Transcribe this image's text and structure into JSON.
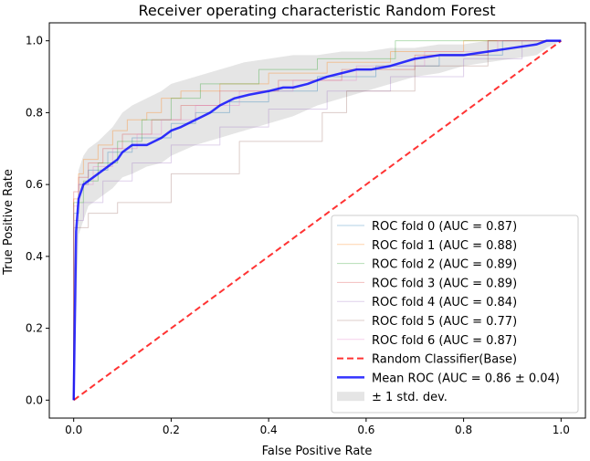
{
  "chart_data": {
    "type": "line",
    "title": "Receiver operating characteristic Random Forest",
    "xlabel": "False Positive Rate",
    "ylabel": "True Positive Rate",
    "xlim": [
      -0.05,
      1.05
    ],
    "ylim": [
      -0.05,
      1.05
    ],
    "xticks": [
      "0.0",
      "0.2",
      "0.4",
      "0.6",
      "0.8",
      "1.0"
    ],
    "yticks": [
      "0.0",
      "0.2",
      "0.4",
      "0.6",
      "0.8",
      "1.0"
    ],
    "legend_position": "lower-right",
    "std_band": {
      "name": "± 1 std. dev.",
      "color": "#bfbfbf",
      "x": [
        0,
        0.01,
        0.02,
        0.03,
        0.05,
        0.08,
        0.1,
        0.12,
        0.15,
        0.18,
        0.2,
        0.25,
        0.3,
        0.35,
        0.4,
        0.45,
        0.5,
        0.55,
        0.6,
        0.65,
        0.7,
        0.75,
        0.8,
        0.85,
        0.9,
        0.95,
        0.97,
        1.0
      ],
      "lower": [
        0,
        0.46,
        0.5,
        0.54,
        0.56,
        0.59,
        0.62,
        0.63,
        0.65,
        0.66,
        0.68,
        0.71,
        0.73,
        0.75,
        0.77,
        0.79,
        0.82,
        0.84,
        0.86,
        0.88,
        0.9,
        0.91,
        0.93,
        0.94,
        0.95,
        0.96,
        0.98,
        1.0
      ],
      "upper": [
        0,
        0.64,
        0.68,
        0.7,
        0.72,
        0.76,
        0.8,
        0.82,
        0.84,
        0.86,
        0.88,
        0.9,
        0.92,
        0.94,
        0.95,
        0.96,
        0.96,
        0.97,
        0.97,
        0.98,
        0.98,
        0.99,
        0.99,
        1.0,
        1.0,
        1.0,
        1.0,
        1.0
      ]
    },
    "series": [
      {
        "name": "ROC fold 0 (AUC = 0.87)",
        "color": "#1f77b4",
        "opacity": 0.35,
        "width": 1,
        "dash": "",
        "x": [
          0,
          0.0,
          0.01,
          0.01,
          0.03,
          0.03,
          0.07,
          0.07,
          0.12,
          0.12,
          0.2,
          0.2,
          0.25,
          0.25,
          0.32,
          0.32,
          0.4,
          0.4,
          0.5,
          0.5,
          0.62,
          0.62,
          0.75,
          0.75,
          0.88,
          0.88,
          1.0
        ],
        "y": [
          0,
          0.52,
          0.52,
          0.6,
          0.6,
          0.64,
          0.64,
          0.69,
          0.69,
          0.73,
          0.73,
          0.77,
          0.77,
          0.8,
          0.8,
          0.83,
          0.83,
          0.86,
          0.86,
          0.9,
          0.9,
          0.93,
          0.93,
          0.96,
          0.96,
          1.0,
          1.0
        ]
      },
      {
        "name": "ROC fold 1 (AUC = 0.88)",
        "color": "#ff7f0e",
        "opacity": 0.35,
        "width": 1,
        "dash": "",
        "x": [
          0,
          0.0,
          0.01,
          0.01,
          0.02,
          0.02,
          0.05,
          0.05,
          0.08,
          0.08,
          0.11,
          0.11,
          0.15,
          0.15,
          0.18,
          0.18,
          0.22,
          0.22,
          0.3,
          0.3,
          0.4,
          0.4,
          0.52,
          0.52,
          0.65,
          0.65,
          0.8,
          0.8,
          1.0
        ],
        "y": [
          0,
          0.56,
          0.56,
          0.63,
          0.63,
          0.67,
          0.67,
          0.71,
          0.71,
          0.75,
          0.75,
          0.78,
          0.78,
          0.8,
          0.8,
          0.84,
          0.84,
          0.86,
          0.86,
          0.88,
          0.88,
          0.91,
          0.91,
          0.94,
          0.94,
          0.97,
          0.97,
          1.0,
          1.0
        ]
      },
      {
        "name": "ROC fold 2 (AUC = 0.89)",
        "color": "#2ca02c",
        "opacity": 0.35,
        "width": 1,
        "dash": "",
        "x": [
          0,
          0.0,
          0.02,
          0.02,
          0.05,
          0.05,
          0.09,
          0.09,
          0.14,
          0.14,
          0.2,
          0.2,
          0.26,
          0.26,
          0.38,
          0.38,
          0.5,
          0.5,
          0.66,
          0.66,
          1.0
        ],
        "y": [
          0,
          0.55,
          0.55,
          0.61,
          0.61,
          0.66,
          0.66,
          0.72,
          0.72,
          0.78,
          0.78,
          0.84,
          0.84,
          0.88,
          0.88,
          0.92,
          0.92,
          0.95,
          0.95,
          1.0,
          1.0
        ]
      },
      {
        "name": "ROC fold 3 (AUC = 0.89)",
        "color": "#d62728",
        "opacity": 0.3,
        "width": 1,
        "dash": "",
        "x": [
          0,
          0.0,
          0.01,
          0.01,
          0.03,
          0.03,
          0.06,
          0.06,
          0.1,
          0.1,
          0.16,
          0.16,
          0.22,
          0.22,
          0.3,
          0.3,
          0.42,
          0.42,
          0.55,
          0.55,
          0.7,
          0.7,
          0.85,
          0.85,
          1.0
        ],
        "y": [
          0,
          0.58,
          0.58,
          0.62,
          0.62,
          0.66,
          0.66,
          0.7,
          0.7,
          0.74,
          0.74,
          0.78,
          0.78,
          0.82,
          0.82,
          0.86,
          0.86,
          0.89,
          0.89,
          0.92,
          0.92,
          0.96,
          0.96,
          1.0,
          1.0
        ]
      },
      {
        "name": "ROC fold 4 (AUC = 0.84)",
        "color": "#9467bd",
        "opacity": 0.3,
        "width": 1,
        "dash": "",
        "x": [
          0,
          0.0,
          0.02,
          0.02,
          0.06,
          0.06,
          0.12,
          0.12,
          0.2,
          0.2,
          0.3,
          0.3,
          0.4,
          0.4,
          0.52,
          0.52,
          0.65,
          0.65,
          0.8,
          0.8,
          0.92,
          0.92,
          1.0
        ],
        "y": [
          0,
          0.5,
          0.5,
          0.55,
          0.55,
          0.61,
          0.61,
          0.66,
          0.66,
          0.71,
          0.71,
          0.76,
          0.76,
          0.81,
          0.81,
          0.86,
          0.86,
          0.9,
          0.9,
          0.95,
          0.95,
          1.0,
          1.0
        ]
      },
      {
        "name": "ROC fold 5 (AUC = 0.77)",
        "color": "#8c564b",
        "opacity": 0.3,
        "width": 1,
        "dash": "",
        "x": [
          0,
          0.0,
          0.03,
          0.03,
          0.09,
          0.09,
          0.2,
          0.2,
          0.34,
          0.34,
          0.51,
          0.51,
          0.56,
          0.56,
          0.7,
          0.7,
          0.85,
          0.85,
          1.0
        ],
        "y": [
          0,
          0.48,
          0.48,
          0.52,
          0.52,
          0.55,
          0.55,
          0.63,
          0.63,
          0.72,
          0.72,
          0.8,
          0.8,
          0.86,
          0.86,
          0.93,
          0.93,
          1.0,
          1.0
        ]
      },
      {
        "name": "ROC fold 6 (AUC = 0.87)",
        "color": "#e377c2",
        "opacity": 0.35,
        "width": 1,
        "dash": "",
        "x": [
          0,
          0.0,
          0.01,
          0.01,
          0.04,
          0.04,
          0.08,
          0.08,
          0.13,
          0.13,
          0.18,
          0.18,
          0.25,
          0.25,
          0.34,
          0.34,
          0.45,
          0.45,
          0.58,
          0.58,
          0.72,
          0.72,
          0.87,
          0.87,
          1.0
        ],
        "y": [
          0,
          0.54,
          0.54,
          0.6,
          0.6,
          0.65,
          0.65,
          0.7,
          0.7,
          0.74,
          0.74,
          0.78,
          0.78,
          0.82,
          0.82,
          0.86,
          0.86,
          0.89,
          0.89,
          0.93,
          0.93,
          0.97,
          0.97,
          1.0,
          1.0
        ]
      },
      {
        "name": "Random Classifier(Base)",
        "color": "#ff0000",
        "opacity": 0.8,
        "width": 2,
        "dash": "7,4",
        "x": [
          0,
          1
        ],
        "y": [
          0,
          1
        ]
      },
      {
        "name": "Mean ROC (AUC = 0.86 ± 0.04)",
        "color": "#0000ff",
        "opacity": 0.8,
        "width": 2.5,
        "dash": "",
        "x": [
          0,
          0.005,
          0.01,
          0.015,
          0.02,
          0.03,
          0.05,
          0.07,
          0.09,
          0.1,
          0.12,
          0.15,
          0.18,
          0.2,
          0.22,
          0.25,
          0.28,
          0.3,
          0.33,
          0.36,
          0.4,
          0.43,
          0.45,
          0.48,
          0.5,
          0.52,
          0.55,
          0.58,
          0.61,
          0.65,
          0.7,
          0.75,
          0.8,
          0.85,
          0.9,
          0.95,
          0.97,
          1.0
        ],
        "y": [
          0,
          0.47,
          0.56,
          0.58,
          0.6,
          0.61,
          0.63,
          0.65,
          0.67,
          0.69,
          0.71,
          0.71,
          0.73,
          0.75,
          0.76,
          0.78,
          0.8,
          0.82,
          0.84,
          0.85,
          0.86,
          0.87,
          0.87,
          0.88,
          0.89,
          0.9,
          0.91,
          0.92,
          0.92,
          0.93,
          0.95,
          0.96,
          0.96,
          0.97,
          0.98,
          0.99,
          1.0,
          1.0
        ]
      }
    ]
  }
}
